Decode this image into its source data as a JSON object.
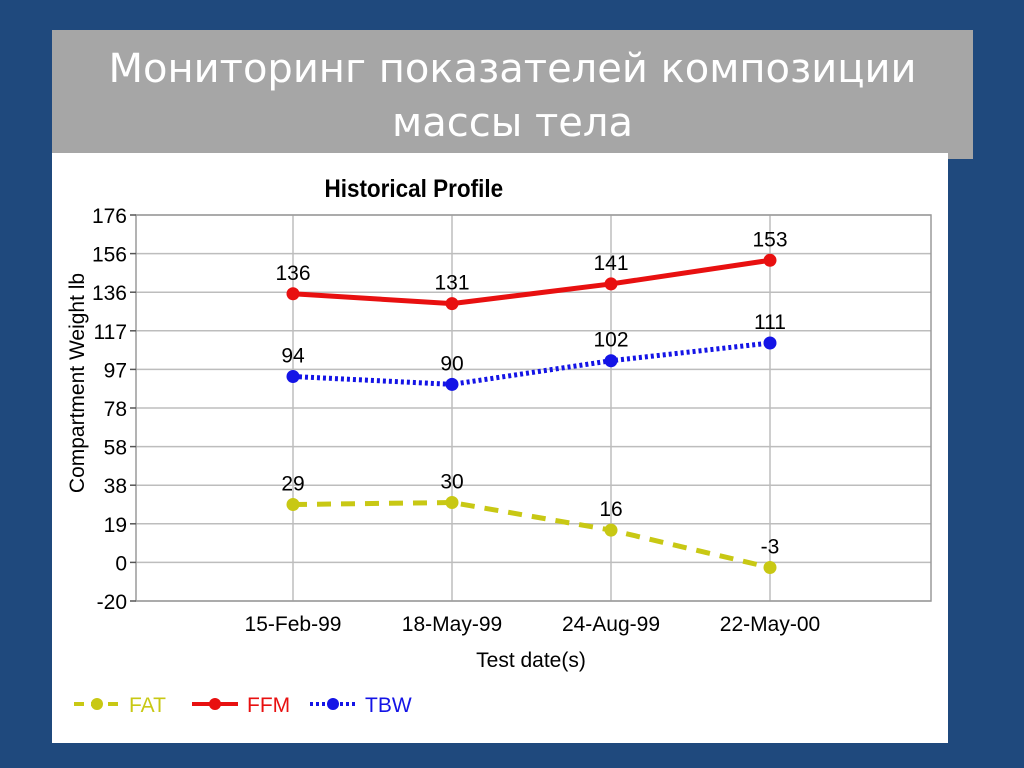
{
  "slide": {
    "title_line1": "Мониторинг показателей композиции",
    "title_line2": "массы тела"
  },
  "chart_data": {
    "type": "line",
    "title": "Historical Profile",
    "xlabel": "Test date(s)",
    "ylabel": "Compartment Weight lb",
    "categories": [
      "15-Feb-99",
      "18-May-99",
      "24-Aug-99",
      "22-May-00"
    ],
    "yticks": [
      "176",
      "156",
      "136",
      "117",
      "97",
      "78",
      "58",
      "38",
      "19",
      "0",
      "-20"
    ],
    "ylim": [
      -20,
      176
    ],
    "grid": true,
    "legend_position": "bottom-left",
    "series": [
      {
        "name": "FAT",
        "values": [
          29,
          30,
          16,
          -3
        ],
        "labels": [
          "29",
          "30",
          "16",
          "-3"
        ],
        "color": "#c8c814",
        "style": "dashed"
      },
      {
        "name": "FFM",
        "values": [
          136,
          131,
          141,
          153
        ],
        "labels": [
          "136",
          "131",
          "141",
          "153"
        ],
        "color": "#e81010",
        "style": "solid"
      },
      {
        "name": "TBW",
        "values": [
          94,
          90,
          102,
          111
        ],
        "labels": [
          "94",
          "90",
          "102",
          "111"
        ],
        "color": "#1414e6",
        "style": "dotted"
      }
    ]
  }
}
